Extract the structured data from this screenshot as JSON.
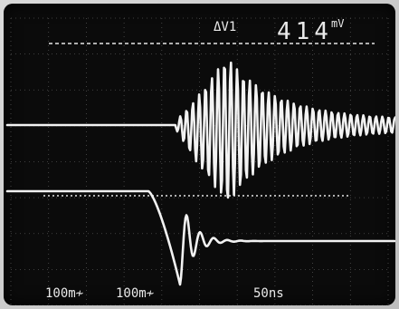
{
  "window": {
    "title": ""
  },
  "oscilloscope": {
    "readout": {
      "delta_label": "ΔV1",
      "value": "414",
      "unit": "mV"
    },
    "scales": {
      "ch1": "100m≁",
      "ch2": "100m≁",
      "time": "50ns"
    },
    "colors": {
      "background": "#0b0b0b",
      "grid": "#8a8a8a",
      "trace": "#f2f2f2"
    }
  }
}
